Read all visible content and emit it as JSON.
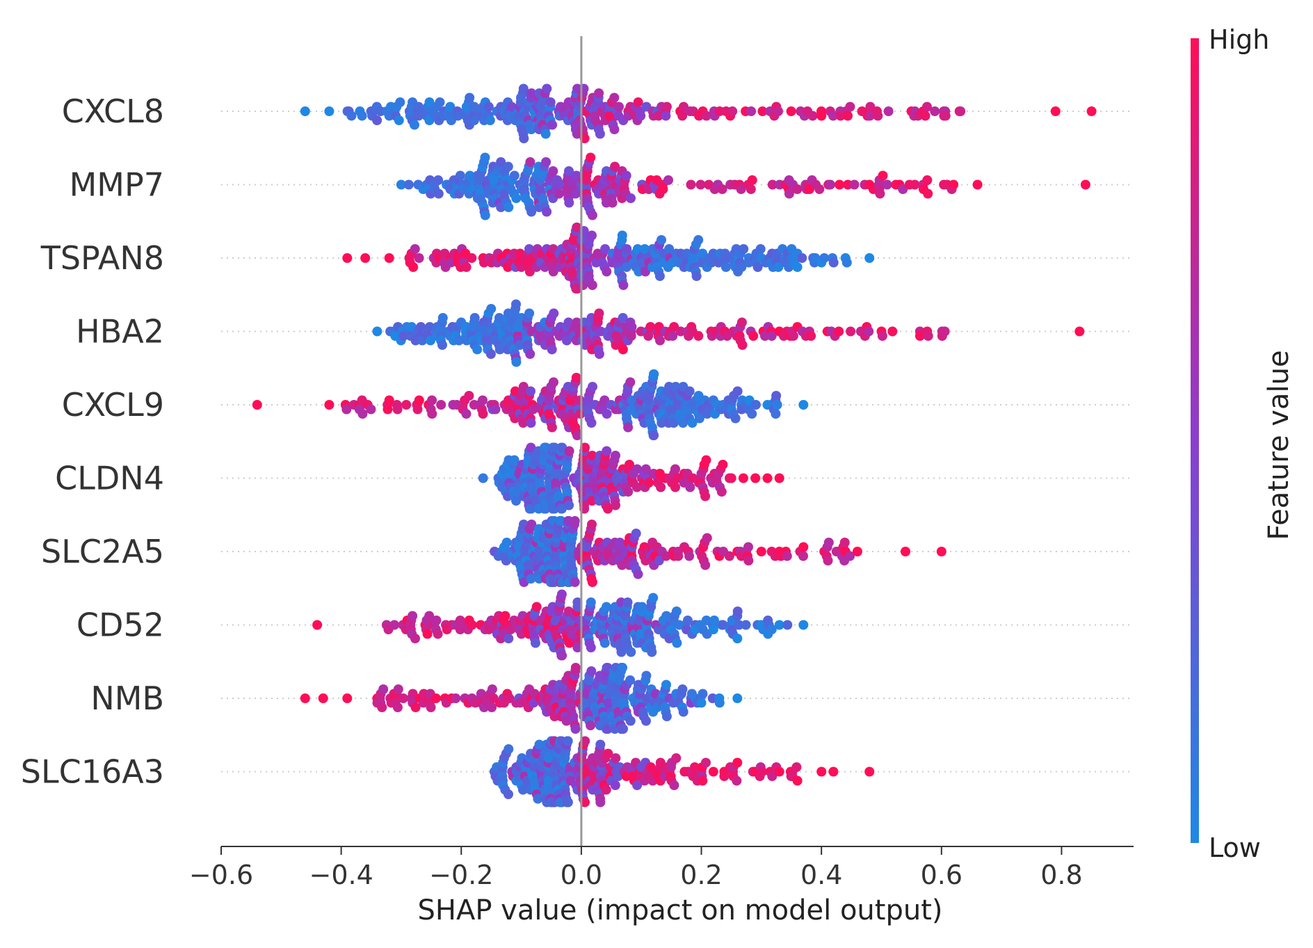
{
  "chart_data": {
    "type": "scatter",
    "subtype": "shap-beeswarm",
    "title": "",
    "xlabel": "SHAP value (impact on model output)",
    "ylabel": "",
    "xlim": [
      -0.6,
      0.92
    ],
    "x_ticks": [
      -0.6,
      -0.4,
      -0.2,
      0.0,
      0.2,
      0.4,
      0.6,
      0.8
    ],
    "x_tick_labels": [
      "−0.6",
      "−0.4",
      "−0.2",
      "0.0",
      "0.2",
      "0.4",
      "0.6",
      "0.8"
    ],
    "colorbar": {
      "title": "Feature value",
      "high_label": "High",
      "low_label": "Low",
      "high_color": "#ff0d57",
      "low_color": "#1e88e5"
    },
    "features": [
      {
        "name": "CXCL8",
        "low_min": -0.46,
        "low_max": 0.0,
        "high_min": 0.0,
        "high_max": 0.85,
        "extra": [
          [
            -0.46,
            0.0
          ],
          [
            -0.42,
            0.0
          ],
          [
            0.63,
            1.0
          ],
          [
            0.79,
            1.0
          ],
          [
            0.85,
            1.0
          ],
          [
            0.55,
            1.0
          ],
          [
            0.48,
            1.0
          ],
          [
            0.4,
            1.0
          ]
        ]
      },
      {
        "name": "MMP7",
        "low_min": -0.3,
        "low_max": -0.05,
        "high_min": 0.0,
        "high_max": 0.84,
        "extra": [
          [
            -0.3,
            0.05
          ],
          [
            0.84,
            1.0
          ],
          [
            0.66,
            1.0
          ],
          [
            0.62,
            1.0
          ],
          [
            0.57,
            1.0
          ],
          [
            0.53,
            1.0
          ],
          [
            0.48,
            1.0
          ],
          [
            0.43,
            1.0
          ],
          [
            0.38,
            1.0
          ]
        ]
      },
      {
        "name": "TSPAN8",
        "low_min": 0.05,
        "low_max": 0.48,
        "high_min": -0.39,
        "high_max": 0.0,
        "extra": [
          [
            -0.39,
            1.0
          ],
          [
            -0.36,
            1.0
          ],
          [
            -0.32,
            1.0
          ],
          [
            -0.28,
            1.0
          ],
          [
            0.48,
            0.0
          ],
          [
            0.44,
            0.0
          ],
          [
            0.4,
            0.0
          ],
          [
            0.36,
            0.0
          ],
          [
            0.3,
            0.05
          ]
        ]
      },
      {
        "name": "HBA2",
        "low_min": -0.34,
        "low_max": -0.05,
        "high_min": 0.0,
        "high_max": 0.83,
        "extra": [
          [
            -0.34,
            0.0
          ],
          [
            -0.31,
            0.0
          ],
          [
            -0.24,
            0.05
          ],
          [
            0.83,
            1.0
          ],
          [
            0.5,
            1.0
          ],
          [
            0.41,
            1.0
          ],
          [
            0.36,
            1.0
          ],
          [
            0.33,
            1.0
          ]
        ]
      },
      {
        "name": "CXCL9",
        "low_min": 0.05,
        "low_max": 0.37,
        "high_min": -0.54,
        "high_max": 0.0,
        "extra": [
          [
            -0.54,
            1.0
          ],
          [
            -0.42,
            1.0
          ],
          [
            -0.37,
            1.0
          ],
          [
            -0.32,
            1.0
          ],
          [
            -0.27,
            1.0
          ],
          [
            0.37,
            0.0
          ],
          [
            0.31,
            0.0
          ],
          [
            0.28,
            0.0
          ],
          [
            0.25,
            0.05
          ]
        ]
      },
      {
        "name": "CLDN4",
        "low_min": -0.17,
        "low_max": -0.02,
        "high_min": 0.0,
        "high_max": 0.33,
        "extra": [
          [
            0.33,
            1.0
          ],
          [
            0.31,
            1.0
          ],
          [
            0.29,
            1.0
          ],
          [
            0.27,
            1.0
          ],
          [
            0.25,
            0.95
          ]
        ]
      },
      {
        "name": "SLC2A5",
        "low_min": -0.15,
        "low_max": -0.01,
        "high_min": 0.0,
        "high_max": 0.6,
        "extra": [
          [
            0.6,
            1.0
          ],
          [
            0.54,
            1.0
          ],
          [
            0.46,
            1.0
          ],
          [
            0.44,
            1.0
          ],
          [
            0.37,
            1.0
          ],
          [
            0.33,
            1.0
          ],
          [
            0.3,
            1.0
          ],
          [
            0.26,
            1.0
          ],
          [
            0.23,
            1.0
          ]
        ]
      },
      {
        "name": "CD52",
        "low_min": 0.0,
        "low_max": 0.37,
        "high_min": -0.44,
        "high_max": 0.0,
        "extra": [
          [
            -0.44,
            1.0
          ],
          [
            -0.29,
            1.0
          ],
          [
            -0.26,
            1.0
          ],
          [
            0.37,
            0.0
          ],
          [
            0.33,
            0.0
          ],
          [
            0.3,
            0.0
          ],
          [
            0.26,
            0.0
          ],
          [
            0.22,
            0.0
          ],
          [
            0.19,
            0.0
          ]
        ]
      },
      {
        "name": "NMB",
        "low_min": 0.0,
        "low_max": 0.26,
        "high_min": -0.46,
        "high_max": 0.0,
        "extra": [
          [
            -0.46,
            1.0
          ],
          [
            -0.43,
            1.0
          ],
          [
            -0.39,
            1.0
          ],
          [
            -0.34,
            1.0
          ],
          [
            -0.31,
            1.0
          ],
          [
            0.26,
            0.0
          ],
          [
            0.23,
            0.0
          ],
          [
            0.2,
            0.0
          ]
        ]
      },
      {
        "name": "SLC16A3",
        "low_min": -0.16,
        "low_max": -0.01,
        "high_min": 0.0,
        "high_max": 0.48,
        "extra": [
          [
            0.48,
            1.0
          ],
          [
            0.42,
            1.0
          ],
          [
            0.4,
            1.0
          ],
          [
            0.36,
            1.0
          ],
          [
            0.33,
            1.0
          ],
          [
            0.29,
            1.0
          ],
          [
            0.26,
            1.0
          ],
          [
            0.22,
            1.0
          ]
        ]
      }
    ]
  }
}
